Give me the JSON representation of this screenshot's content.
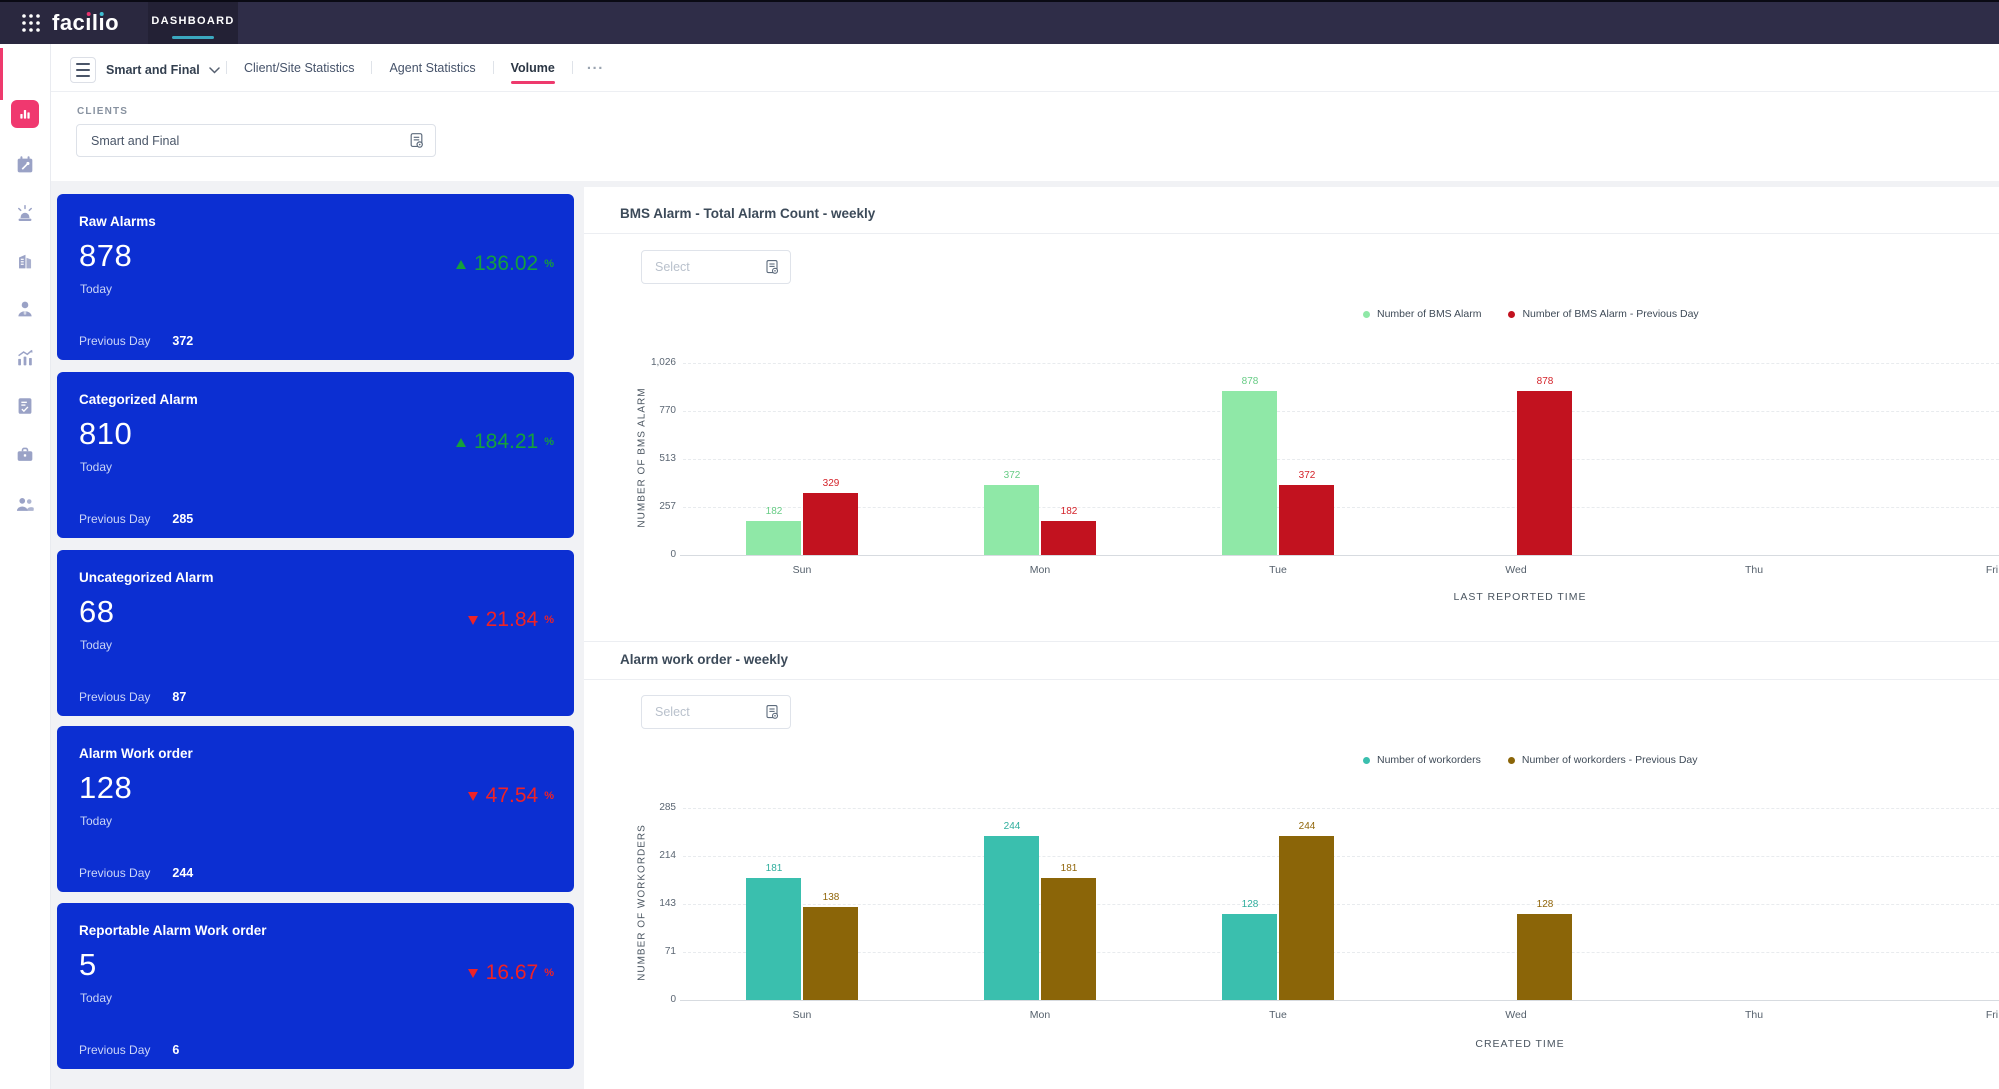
{
  "topbar": {
    "brand": "facilio",
    "brand_parts": [
      "fac",
      "ı",
      "l",
      "ı",
      "o"
    ],
    "nav_label": "DASHBOARD"
  },
  "sidebar": {
    "items": [
      {
        "icon": "dashboard-icon",
        "active": true
      },
      {
        "icon": "maintenance-calendar-icon",
        "active": false
      },
      {
        "icon": "alarm-siren-icon",
        "active": false
      },
      {
        "icon": "building-icon",
        "active": false
      },
      {
        "icon": "agent-icon",
        "active": false
      },
      {
        "icon": "analytics-icon",
        "active": false
      },
      {
        "icon": "tasks-clipboard-icon",
        "active": false
      },
      {
        "icon": "toolbox-icon",
        "active": false
      },
      {
        "icon": "team-icon",
        "active": false
      }
    ]
  },
  "tabs_row": {
    "dashboard_name": "Smart and Final",
    "tabs": [
      "Client/Site Statistics",
      "Agent Statistics",
      "Volume"
    ],
    "active_tab": "Volume",
    "more": "..."
  },
  "filters": {
    "clients_label": "CLIENTS",
    "clients_value": "Smart and Final"
  },
  "ui": {
    "select_placeholder": "Select"
  },
  "cards": [
    {
      "title": "Raw Alarms",
      "value": "878",
      "period": "Today",
      "delta": "136.02",
      "delta_unit": "%",
      "direction": "up",
      "previous_label": "Previous Day",
      "previous_value": "372"
    },
    {
      "title": "Categorized Alarm",
      "value": "810",
      "period": "Today",
      "delta": "184.21",
      "delta_unit": "%",
      "direction": "up",
      "previous_label": "Previous Day",
      "previous_value": "285"
    },
    {
      "title": "Uncategorized Alarm",
      "value": "68",
      "period": "Today",
      "delta": "21.84",
      "delta_unit": "%",
      "direction": "down",
      "previous_label": "Previous Day",
      "previous_value": "87"
    },
    {
      "title": "Alarm Work order",
      "value": "128",
      "period": "Today",
      "delta": "47.54",
      "delta_unit": "%",
      "direction": "down",
      "previous_label": "Previous Day",
      "previous_value": "244"
    },
    {
      "title": "Reportable Alarm Work order",
      "value": "5",
      "period": "Today",
      "delta": "16.67",
      "delta_unit": "%",
      "direction": "down",
      "previous_label": "Previous Day",
      "previous_value": "6"
    }
  ],
  "chart_data": [
    {
      "type": "bar",
      "title": "BMS Alarm - Total Alarm Count - weekly",
      "categories": [
        "Sun",
        "Mon",
        "Tue",
        "Wed",
        "Thu",
        "Fri"
      ],
      "series": [
        {
          "name": "Number of BMS Alarm",
          "color": "#8fe8a7",
          "label_color": "#67cc85",
          "values": [
            182,
            372,
            878,
            null,
            null,
            null
          ]
        },
        {
          "name": "Number of BMS Alarm - Previous Day",
          "color": "#c2121f",
          "label_color": "#d4232a",
          "values": [
            329,
            182,
            372,
            878,
            null,
            null
          ]
        }
      ],
      "xlabel": "LAST REPORTED TIME",
      "ylabel": "NUMBER OF BMS ALARM",
      "ylim": [
        0,
        1026
      ],
      "yticks": [
        0,
        257,
        513,
        770,
        1026
      ],
      "ytick_labels": [
        "0",
        "257",
        "513",
        "770",
        "1,026"
      ],
      "grid": true,
      "legend_position": "top-center"
    },
    {
      "type": "bar",
      "title": "Alarm work order - weekly",
      "categories": [
        "Sun",
        "Mon",
        "Tue",
        "Wed",
        "Thu",
        "Fri"
      ],
      "series": [
        {
          "name": "Number of workorders",
          "color": "#3abfae",
          "label_color": "#2fae9d",
          "values": [
            181,
            244,
            128,
            null,
            null,
            null
          ]
        },
        {
          "name": "Number of workorders - Previous Day",
          "color": "#8b6508",
          "label_color": "#91660a",
          "values": [
            138,
            181,
            244,
            128,
            null,
            null
          ]
        }
      ],
      "xlabel": "CREATED TIME",
      "ylabel": "NUMBER OF WORKORDERS",
      "ylim": [
        0,
        285
      ],
      "yticks": [
        0,
        71,
        143,
        214,
        285
      ],
      "ytick_labels": [
        "0",
        "71",
        "143",
        "214",
        "285"
      ],
      "grid": true,
      "legend_position": "top-center"
    }
  ],
  "colors": {
    "card_blue": "#0c2fd2",
    "pink_accent": "#ee3a6d",
    "teal_underline": "#3ba8bf",
    "delta_up_green": "#14a03c",
    "delta_down_red": "#ef2226",
    "topbar_navy": "#2f2d48"
  }
}
